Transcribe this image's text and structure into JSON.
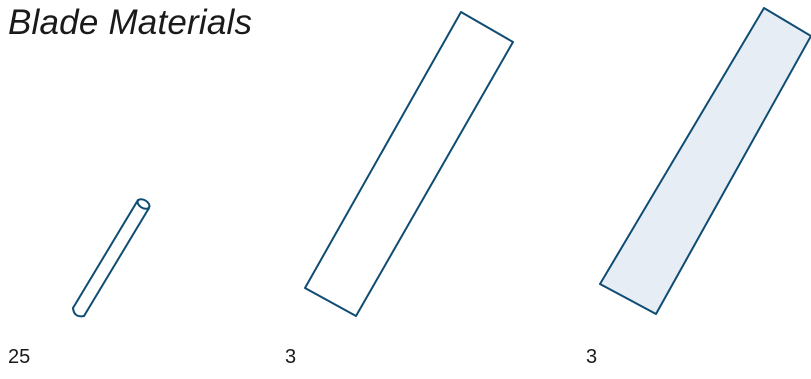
{
  "title": "Blade Materials",
  "materials": [
    {
      "type": "rod",
      "count": "25"
    },
    {
      "type": "strip",
      "count": "3"
    },
    {
      "type": "sheet",
      "count": "3",
      "fill": "#e6edf4"
    }
  ],
  "colors": {
    "outline": "#0f4c74",
    "sheet_fill": "#e6edf4",
    "text": "#1a1a1a",
    "background": "#ffffff"
  }
}
